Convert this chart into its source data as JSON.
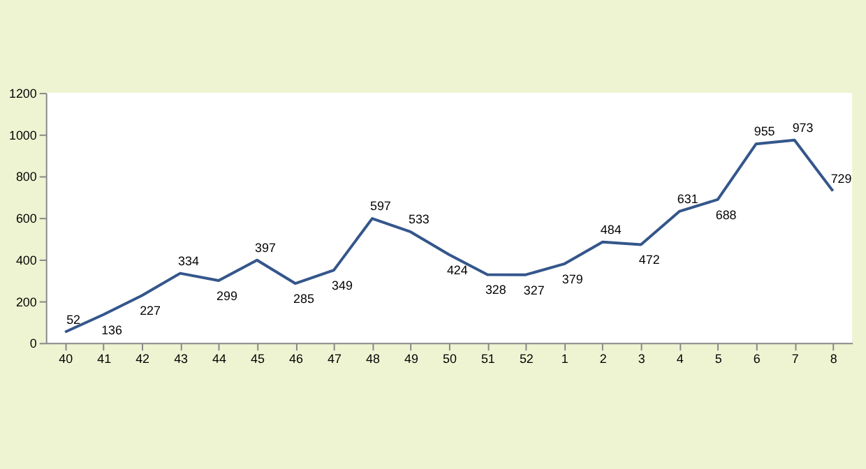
{
  "chart_data": {
    "type": "line",
    "categories": [
      "40",
      "41",
      "42",
      "43",
      "44",
      "45",
      "46",
      "47",
      "48",
      "49",
      "50",
      "51",
      "52",
      "1",
      "2",
      "3",
      "4",
      "5",
      "6",
      "7",
      "8"
    ],
    "series": [
      {
        "color": "#34568b",
        "values": [
          52,
          136,
          227,
          334,
          299,
          397,
          285,
          349,
          597,
          533,
          424,
          328,
          327,
          379,
          484,
          472,
          631,
          688,
          955,
          973,
          729
        ]
      }
    ],
    "ylim": [
      0,
      1200
    ],
    "yticks": [
      0,
      200,
      400,
      600,
      800,
      1000,
      1200
    ],
    "grid": false,
    "marker": "none",
    "line_style": "solid",
    "data_labels": true
  }
}
